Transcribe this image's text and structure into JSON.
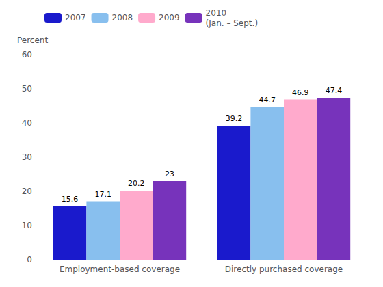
{
  "chart_data": {
    "type": "bar",
    "categories": [
      "Employment-based coverage",
      "Directly purchased coverage"
    ],
    "series": [
      {
        "name": "2007",
        "color": "#1a1acc",
        "values": [
          15.6,
          39.2
        ]
      },
      {
        "name": "2008",
        "color": "#88bfee",
        "values": [
          17.1,
          44.7
        ]
      },
      {
        "name": "2009",
        "color": "#ffaacc",
        "values": [
          20.2,
          46.9
        ]
      },
      {
        "name": "2010",
        "color": "#7733bb",
        "values": [
          23.0,
          47.4
        ]
      }
    ],
    "annotation": "(Jan. – Sept.)",
    "ylabel": "Percent",
    "ylim": [
      0,
      60
    ],
    "yticks": [
      0,
      10,
      20,
      30,
      40,
      50,
      60
    ],
    "grid": false,
    "legend": "upper left",
    "data_labels": true
  }
}
